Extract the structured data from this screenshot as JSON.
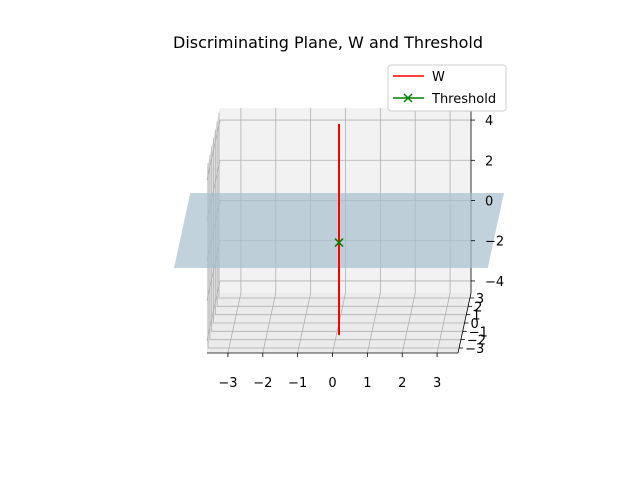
{
  "chart_data": {
    "type": "3d-line",
    "title": "Discriminating Plane, W and Threshold",
    "xlabel": "",
    "ylabel": "",
    "zlabel": "",
    "xlim": [
      -3.6,
      3.6
    ],
    "ylim": [
      -3.6,
      3.6
    ],
    "zlim": [
      -4.6,
      4.6
    ],
    "x_ticks": [
      "−3",
      "−2",
      "−1",
      "0",
      "1",
      "2",
      "3"
    ],
    "y_ticks": [
      "−3",
      "−2",
      "−1",
      "0",
      "1",
      "2",
      "3"
    ],
    "z_ticks": [
      "−4",
      "−2",
      "0",
      "2",
      "4"
    ],
    "grid": true,
    "legend_position": "upper right",
    "series": [
      {
        "name": "W",
        "type": "line",
        "color": "#ff0000",
        "points": [
          [
            0,
            0,
            -5.2
          ],
          [
            0,
            0,
            5.3
          ]
        ]
      },
      {
        "name": "Threshold",
        "type": "marker",
        "marker": "x",
        "color": "#008000",
        "points": [
          [
            0,
            0,
            -0.6
          ]
        ]
      }
    ],
    "surfaces": [
      {
        "name": "Discriminating Plane",
        "z": 0,
        "x_range": [
          -4.5,
          4.5
        ],
        "y_range": [
          -4.5,
          4.5
        ],
        "color": "#a8bfcd"
      }
    ]
  }
}
